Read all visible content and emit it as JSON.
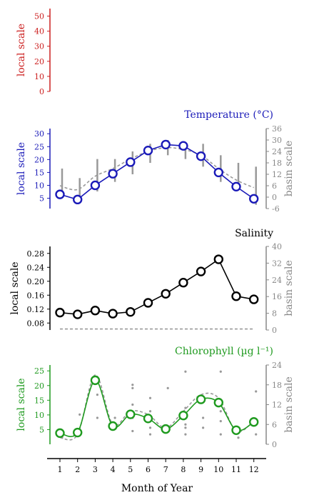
{
  "colors": {
    "red": "#cc1f1f",
    "blue": "#1a1ab8",
    "black": "#000000",
    "green": "#1f9a1f",
    "gray": "#888888"
  },
  "xaxis": {
    "label": "Month of Year",
    "ticks": [
      "1",
      "2",
      "3",
      "4",
      "5",
      "6",
      "7",
      "8",
      "9",
      "10",
      "11",
      "12"
    ]
  },
  "chart_data": [
    {
      "type": "line",
      "id": "top",
      "title": "",
      "ylabel_left": "local scale",
      "ylim_left": [
        0,
        55
      ],
      "yticks_left": [
        0,
        10,
        20,
        30,
        40,
        50
      ],
      "color": "red",
      "series": []
    },
    {
      "type": "line",
      "id": "temperature",
      "title": "Temperature (°C)",
      "ylabel_left": "local scale",
      "ylabel_right": "basin scale",
      "ylim_left": [
        1,
        32
      ],
      "yticks_left": [
        5,
        10,
        15,
        20,
        25,
        30
      ],
      "ylim_right": [
        -6,
        36
      ],
      "yticks_right": [
        -6,
        0,
        6,
        12,
        18,
        24,
        30,
        36
      ],
      "color": "blue",
      "x": [
        1,
        2,
        3,
        4,
        5,
        6,
        7,
        8,
        9,
        10,
        11,
        12
      ],
      "local": [
        6.5,
        4.5,
        10,
        14.5,
        19,
        23.5,
        25.8,
        25.3,
        21.3,
        15,
        9.5,
        4.8
      ],
      "basin": [
        6,
        4,
        11,
        15,
        20,
        24,
        26,
        25,
        22,
        15,
        9,
        5
      ],
      "basin_ranges": [
        [
          0,
          15
        ],
        [
          -1,
          10
        ],
        [
          3,
          20
        ],
        [
          8,
          20
        ],
        [
          12,
          24
        ],
        [
          18,
          28
        ],
        [
          22,
          30
        ],
        [
          20,
          28
        ],
        [
          16,
          28
        ],
        [
          8,
          22
        ],
        [
          4,
          18
        ],
        [
          -4,
          16
        ]
      ]
    },
    {
      "type": "line",
      "id": "salinity",
      "title": "Salinity",
      "ylabel_left": "local scale",
      "ylabel_right": "basin scale",
      "ylim_left": [
        0.06,
        0.3
      ],
      "yticks_left": [
        0.08,
        0.12,
        0.16,
        0.2,
        0.24,
        0.28
      ],
      "yticklabels_left": [
        "0.08",
        "0.12",
        "0.16",
        "0.20",
        "0.24",
        "0.28"
      ],
      "ylim_right": [
        0,
        40
      ],
      "yticks_right": [
        0,
        8,
        16,
        24,
        32,
        40
      ],
      "color": "black",
      "x": [
        1,
        2,
        3,
        4,
        5,
        6,
        7,
        8,
        9,
        10,
        11,
        12
      ],
      "local": [
        0.11,
        0.105,
        0.116,
        0.107,
        0.112,
        0.138,
        0.164,
        0.196,
        0.228,
        0.263,
        0.157,
        0.148
      ],
      "basin": [
        0.5,
        0.5,
        0.5,
        0.5,
        0.5,
        0.5,
        0.5,
        0.5,
        0.5,
        0.5,
        0.5,
        0.5
      ]
    },
    {
      "type": "line",
      "id": "chlorophyll",
      "title": "Chlorophyll (µg l⁻¹)",
      "ylabel_left": "local scale",
      "ylabel_right": "basin scale",
      "ylim_left": [
        0,
        27
      ],
      "yticks_left": [
        5,
        10,
        15,
        20,
        25
      ],
      "ylim_right": [
        0,
        24
      ],
      "yticks_right": [
        0,
        6,
        12,
        18,
        24
      ],
      "color": "green",
      "x": [
        1,
        2,
        3,
        4,
        5,
        6,
        7,
        8,
        9,
        10,
        11,
        12
      ],
      "local": [
        3.8,
        4,
        21.8,
        6.2,
        10.2,
        8.8,
        5.2,
        9.8,
        15.3,
        14.2,
        4.8,
        7.6
      ],
      "basin": [
        2,
        3,
        21,
        6,
        10,
        9,
        5,
        10,
        15,
        14,
        4,
        7
      ],
      "basin_points": [
        [
          1,
          2
        ],
        [
          1,
          3
        ],
        [
          2,
          3
        ],
        [
          2,
          9
        ],
        [
          3,
          8
        ],
        [
          3,
          15
        ],
        [
          4,
          5
        ],
        [
          4,
          8
        ],
        [
          5,
          4
        ],
        [
          5,
          8
        ],
        [
          5,
          12
        ],
        [
          5,
          17
        ],
        [
          5,
          18
        ],
        [
          6,
          3
        ],
        [
          6,
          5
        ],
        [
          6,
          10
        ],
        [
          6,
          14
        ],
        [
          7,
          4
        ],
        [
          7,
          17
        ],
        [
          8,
          3
        ],
        [
          8,
          5
        ],
        [
          8,
          6
        ],
        [
          8,
          11
        ],
        [
          8,
          22
        ],
        [
          9,
          5
        ],
        [
          9,
          8
        ],
        [
          9,
          13
        ],
        [
          10,
          3
        ],
        [
          10,
          7
        ],
        [
          10,
          10
        ],
        [
          10,
          22
        ],
        [
          11,
          2
        ],
        [
          11,
          4
        ],
        [
          12,
          3
        ],
        [
          12,
          16
        ]
      ]
    }
  ]
}
